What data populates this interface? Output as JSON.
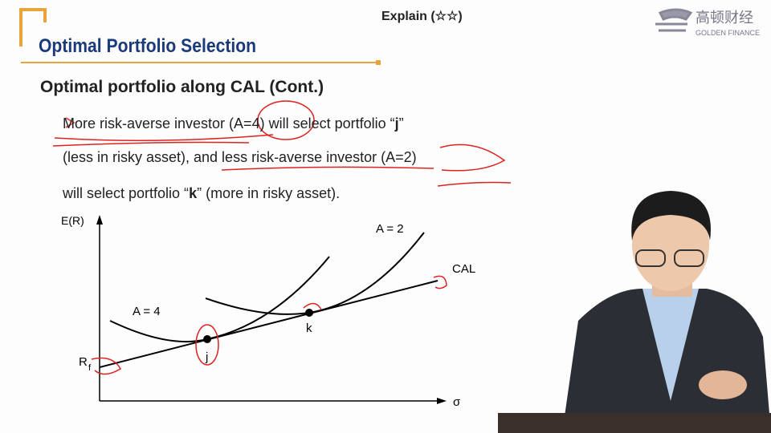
{
  "header": {
    "badge": "Explain (☆☆)",
    "logo_cn": "高顿财经",
    "logo_en": "GOLDEN FINANCE",
    "title": "Optimal Portfolio Selection"
  },
  "slide": {
    "heading": "Optimal portfolio along CAL (Cont.)",
    "bullet": [
      [
        "More risk-averse investor (A=4) will select portfolio “",
        "j",
        "”"
      ],
      [
        "(less in risky asset), and less risk-averse investor (A=2)"
      ],
      [
        "will select portfolio “",
        "k",
        "” (more in risky asset)."
      ]
    ]
  },
  "diagram": {
    "y_axis_label": "E(R)",
    "x_axis_label": "σ",
    "curve_a2": "A = 2",
    "curve_a4": "A = 4",
    "cal": "CAL",
    "point_j": "j",
    "point_k": "k",
    "rf": "R",
    "rf_sub": "f"
  }
}
